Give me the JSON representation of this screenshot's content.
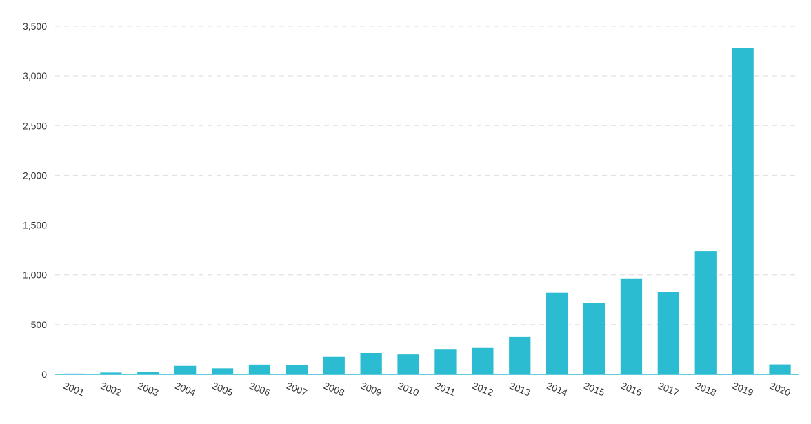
{
  "chart_data": {
    "type": "bar",
    "title": "",
    "xlabel": "",
    "ylabel": "",
    "categories": [
      "2001",
      "2002",
      "2003",
      "2004",
      "2005",
      "2006",
      "2007",
      "2008",
      "2009",
      "2010",
      "2011",
      "2012",
      "2013",
      "2014",
      "2015",
      "2016",
      "2017",
      "2018",
      "2019",
      "2020"
    ],
    "values": [
      8,
      18,
      22,
      85,
      60,
      98,
      95,
      175,
      215,
      200,
      255,
      265,
      375,
      820,
      715,
      965,
      830,
      1240,
      3285,
      100
    ],
    "ylim": [
      0,
      3500
    ],
    "yticks": [
      0,
      500,
      1000,
      1500,
      2000,
      2500,
      3000,
      3500
    ],
    "ytick_labels": [
      "0",
      "500",
      "1,000",
      "1,500",
      "2,000",
      "2,500",
      "3,000",
      "3,500"
    ],
    "grid": true,
    "grid_style": "dashed-horizontal",
    "legend": "none",
    "bar_color": "#2bbcd1",
    "axis_line_color": "#2bbcd1",
    "grid_color": "#e2e2e2"
  }
}
